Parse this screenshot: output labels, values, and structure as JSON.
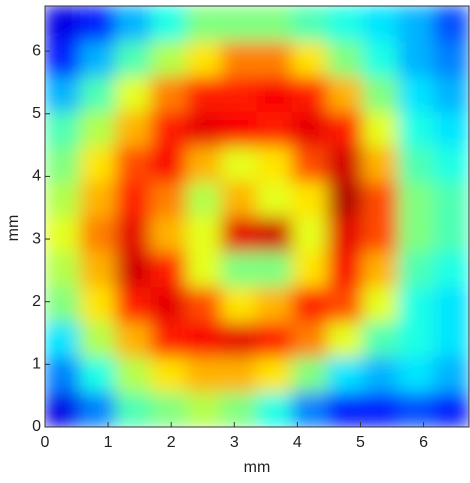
{
  "chart_data": {
    "type": "heatmap",
    "xlabel": "mm",
    "ylabel": "mm",
    "colormap": "jet",
    "clim": [
      0,
      1
    ],
    "x": [
      0.28,
      0.84,
      1.4,
      1.96,
      2.52,
      3.08,
      3.64,
      4.2,
      4.76,
      5.32,
      5.88,
      6.44
    ],
    "y": [
      0.28,
      0.84,
      1.4,
      1.96,
      2.52,
      3.08,
      3.64,
      4.2,
      4.76,
      5.32,
      5.88,
      6.44
    ],
    "z": [
      [
        0.1,
        0.25,
        0.45,
        0.5,
        0.55,
        0.5,
        0.4,
        0.25,
        0.15,
        0.15,
        0.2,
        0.15
      ],
      [
        0.25,
        0.4,
        0.55,
        0.65,
        0.7,
        0.7,
        0.65,
        0.5,
        0.35,
        0.3,
        0.35,
        0.3
      ],
      [
        0.35,
        0.55,
        0.7,
        0.85,
        0.88,
        0.9,
        0.85,
        0.75,
        0.6,
        0.45,
        0.4,
        0.35
      ],
      [
        0.5,
        0.65,
        0.85,
        0.9,
        0.8,
        0.65,
        0.7,
        0.85,
        0.8,
        0.6,
        0.4,
        0.35
      ],
      [
        0.55,
        0.7,
        0.92,
        0.85,
        0.6,
        0.5,
        0.5,
        0.65,
        0.88,
        0.7,
        0.45,
        0.4
      ],
      [
        0.6,
        0.75,
        0.9,
        0.7,
        0.6,
        0.9,
        0.92,
        0.6,
        0.9,
        0.8,
        0.5,
        0.45
      ],
      [
        0.55,
        0.7,
        0.85,
        0.75,
        0.55,
        0.7,
        0.6,
        0.65,
        0.95,
        0.8,
        0.5,
        0.45
      ],
      [
        0.5,
        0.65,
        0.8,
        0.88,
        0.7,
        0.6,
        0.65,
        0.8,
        0.92,
        0.7,
        0.45,
        0.4
      ],
      [
        0.45,
        0.55,
        0.7,
        0.85,
        0.9,
        0.88,
        0.85,
        0.9,
        0.85,
        0.6,
        0.4,
        0.35
      ],
      [
        0.3,
        0.45,
        0.6,
        0.75,
        0.85,
        0.85,
        0.88,
        0.85,
        0.7,
        0.5,
        0.35,
        0.3
      ],
      [
        0.15,
        0.3,
        0.45,
        0.55,
        0.65,
        0.75,
        0.75,
        0.65,
        0.5,
        0.4,
        0.3,
        0.25
      ],
      [
        0.1,
        0.15,
        0.3,
        0.4,
        0.5,
        0.5,
        0.5,
        0.45,
        0.4,
        0.35,
        0.3,
        0.2
      ]
    ],
    "xlim": [
      0,
      6.72
    ],
    "ylim": [
      0,
      6.72
    ],
    "xticks": [
      0,
      1,
      2,
      3,
      4,
      5,
      6
    ],
    "yticks": [
      0,
      1,
      2,
      3,
      4,
      5,
      6
    ]
  }
}
